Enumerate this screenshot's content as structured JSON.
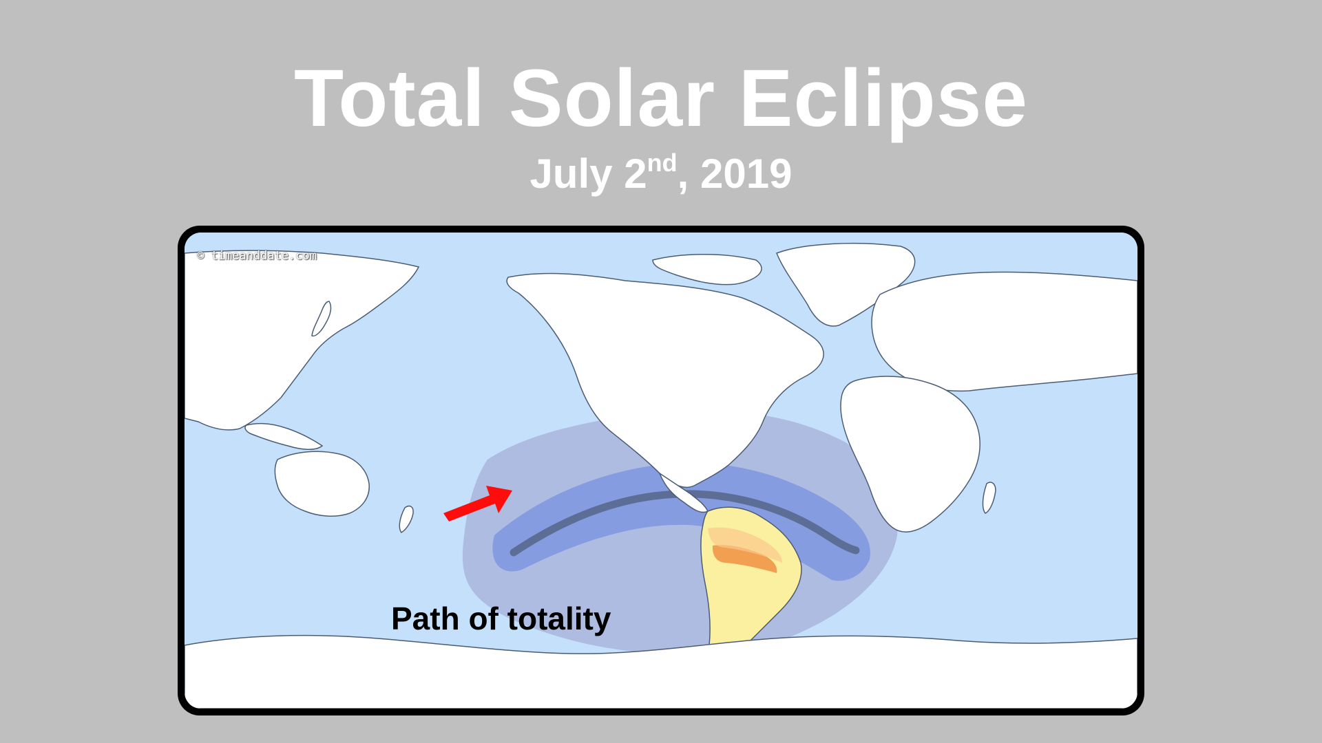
{
  "slide": {
    "title": "Total Solar Eclipse",
    "subtitle_main": "July 2",
    "subtitle_sup": "nd",
    "subtitle_end": ", 2019"
  },
  "map": {
    "watermark": "© timeanddate.com",
    "annotation": "Path of totality",
    "colors": {
      "ocean": "#c5e0fa",
      "land": "#ffffff",
      "coast": "#4b5b73",
      "partial_outer": "#a9b5dd",
      "partial_inner": "#7f96df",
      "totality": "#5d6e96",
      "daylight_land": "#fbf0a0",
      "eclipse_land": "#fbc88a",
      "totality_land": "#f29648",
      "arrow": "#ff0d0d",
      "frame": "#000000",
      "background": "#bfbfbf"
    }
  }
}
